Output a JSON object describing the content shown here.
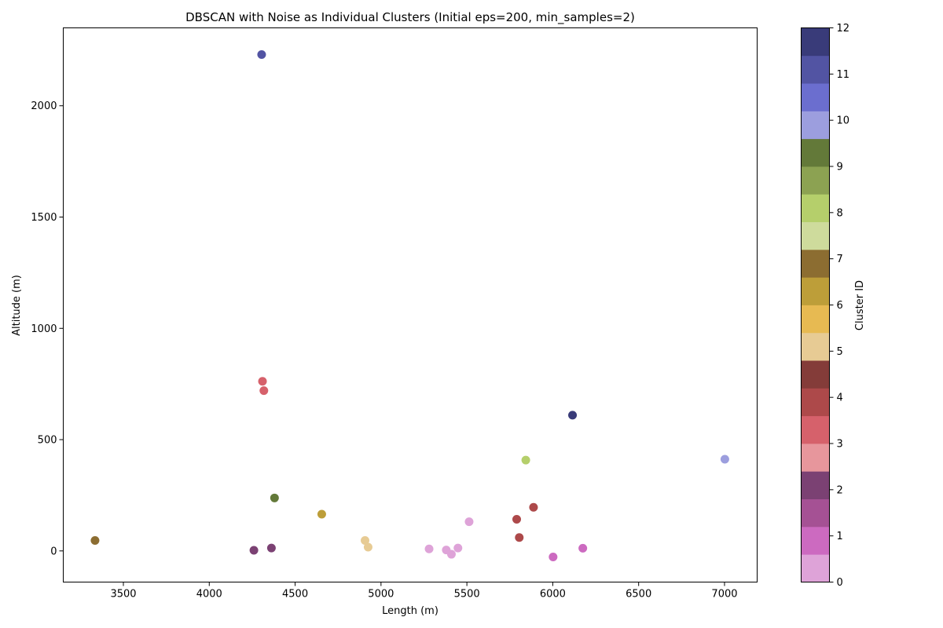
{
  "chart_data": {
    "type": "scatter",
    "title": "DBSCAN with Noise as Individual Clusters (Initial eps=200, min_samples=2)",
    "xlabel": "Length (m)",
    "ylabel": "Altitude (m)",
    "xlim": [
      3150,
      7190
    ],
    "ylim": [
      -140,
      2350
    ],
    "xticks": [
      "3500",
      "4000",
      "4500",
      "5000",
      "5500",
      "6000",
      "6500",
      "7000"
    ],
    "yticks": [
      "0",
      "500",
      "1000",
      "1500",
      "2000"
    ],
    "grid": false,
    "colorbar": {
      "label": "Cluster ID",
      "range": [
        0,
        12
      ],
      "ticks": [
        "0",
        "1",
        "2",
        "3",
        "4",
        "5",
        "6",
        "7",
        "8",
        "9",
        "10",
        "11",
        "12"
      ],
      "colors": [
        "#dea3d8",
        "#cc6ac0",
        "#a55194",
        "#7b4173",
        "#e7969c",
        "#d6616b",
        "#ad494a",
        "#843c39",
        "#e7cb94",
        "#e7ba52",
        "#bd9e39",
        "#8c6d31",
        "#cedb9c",
        "#b5cf6b",
        "#8ca252",
        "#637939",
        "#9c9ede",
        "#6b6ecf",
        "#5254a3",
        "#393b79"
      ]
    },
    "points": [
      {
        "x": 4305,
        "y": 2230,
        "cluster": 11,
        "color": "#5254a3"
      },
      {
        "x": 4310,
        "y": 762,
        "cluster": 3,
        "color": "#d6616b"
      },
      {
        "x": 4318,
        "y": 720,
        "cluster": 3,
        "color": "#d6616b"
      },
      {
        "x": 6115,
        "y": 610,
        "cluster": 12,
        "color": "#393b79"
      },
      {
        "x": 5843,
        "y": 408,
        "cluster": 8,
        "color": "#b5cf6b"
      },
      {
        "x": 7002,
        "y": 412,
        "cluster": 10,
        "color": "#9c9ede"
      },
      {
        "x": 4380,
        "y": 238,
        "cluster": 9,
        "color": "#637939"
      },
      {
        "x": 4655,
        "y": 165,
        "cluster": 6,
        "color": "#bd9e39"
      },
      {
        "x": 5888,
        "y": 196,
        "cluster": 4,
        "color": "#ad494a"
      },
      {
        "x": 5790,
        "y": 142,
        "cluster": 4,
        "color": "#ad494a"
      },
      {
        "x": 5805,
        "y": 60,
        "cluster": 4,
        "color": "#ad494a"
      },
      {
        "x": 5513,
        "y": 131,
        "cluster": 0,
        "color": "#dea3d8"
      },
      {
        "x": 3335,
        "y": 47,
        "cluster": 7,
        "color": "#8c6d31"
      },
      {
        "x": 4907,
        "y": 47,
        "cluster": 5,
        "color": "#e7cb94"
      },
      {
        "x": 4925,
        "y": 17,
        "cluster": 5,
        "color": "#e7cb94"
      },
      {
        "x": 4362,
        "y": 13,
        "cluster": 2,
        "color": "#7b4173"
      },
      {
        "x": 4260,
        "y": 3,
        "cluster": 2,
        "color": "#7b4173"
      },
      {
        "x": 5280,
        "y": 9,
        "cluster": 0,
        "color": "#dea3d8"
      },
      {
        "x": 5380,
        "y": 4,
        "cluster": 0,
        "color": "#dea3d8"
      },
      {
        "x": 5410,
        "y": -15,
        "cluster": 0,
        "color": "#dea3d8"
      },
      {
        "x": 5448,
        "y": 13,
        "cluster": 0,
        "color": "#dea3d8"
      },
      {
        "x": 6002,
        "y": -27,
        "cluster": 1,
        "color": "#cc6ac0"
      },
      {
        "x": 6175,
        "y": 12,
        "cluster": 1,
        "color": "#cc6ac0"
      }
    ]
  }
}
